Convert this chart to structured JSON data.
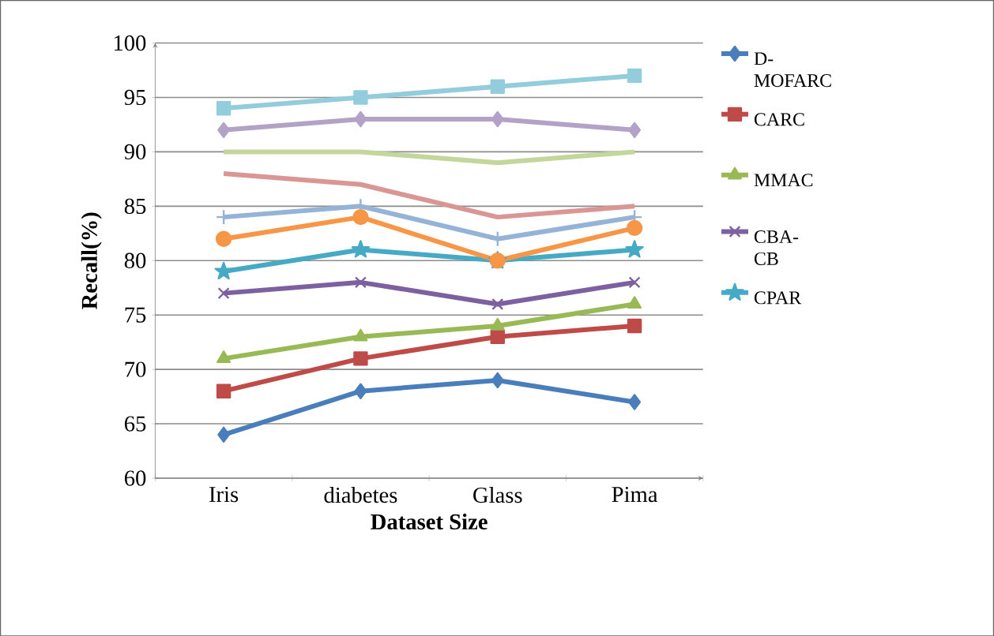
{
  "chart_data": {
    "type": "line",
    "xlabel": "Dataset Size",
    "ylabel": "Recall(%)",
    "categories": [
      "Iris",
      "diabetes",
      "Glass",
      "Pima"
    ],
    "ylim": [
      60,
      100
    ],
    "yticks": [
      60,
      65,
      70,
      75,
      80,
      85,
      90,
      95,
      100
    ],
    "grid": "y",
    "legend": "right",
    "series": [
      {
        "name": "D-MOFARC",
        "color": "#4a7ebb",
        "marker": "diamond",
        "values": [
          64,
          68,
          69,
          67
        ]
      },
      {
        "name": "CARC",
        "color": "#be4b48",
        "marker": "square",
        "values": [
          68,
          71,
          73,
          74
        ]
      },
      {
        "name": "MMAC",
        "color": "#98b954",
        "marker": "triangle",
        "values": [
          71,
          73,
          74,
          76
        ]
      },
      {
        "name": "CBA-CB",
        "color": "#7d60a0",
        "marker": "cross",
        "values": [
          77,
          78,
          76,
          78
        ]
      },
      {
        "name": "CPAR",
        "color": "#46aac5",
        "marker": "star",
        "values": [
          79,
          81,
          80,
          81
        ]
      },
      {
        "color": "#95b3d7",
        "marker": "plus",
        "values": [
          84,
          85,
          82,
          84
        ]
      },
      {
        "color": "#f79646",
        "marker": "circle",
        "values": [
          82,
          84,
          80,
          83
        ]
      },
      {
        "color": "#d99694",
        "marker": "none",
        "values": [
          88,
          87,
          84,
          85
        ]
      },
      {
        "color": "#c3d69b",
        "marker": "none",
        "values": [
          90,
          90,
          89,
          90
        ]
      },
      {
        "color": "#b3a2c7",
        "marker": "diamond",
        "values": [
          92,
          93,
          93,
          92
        ]
      },
      {
        "color": "#93cddd",
        "marker": "square",
        "values": [
          94,
          95,
          96,
          97
        ]
      }
    ]
  }
}
